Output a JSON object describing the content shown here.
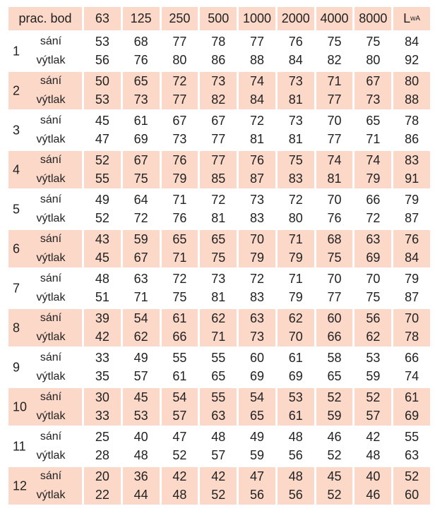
{
  "colors": {
    "shade": "#fcd8c8",
    "text": "#222222"
  },
  "header": {
    "first": "prac. bod",
    "freqs": [
      "63",
      "125",
      "250",
      "500",
      "1000",
      "2000",
      "4000",
      "8000"
    ],
    "lwa_main": "L",
    "lwa_sub": "wA"
  },
  "row_labels": {
    "intake": "sání",
    "discharge": "výtlak"
  },
  "groups": [
    {
      "id": "1",
      "intake": [
        53,
        68,
        77,
        78,
        77,
        76,
        75,
        75,
        84
      ],
      "discharge": [
        56,
        76,
        80,
        86,
        88,
        84,
        82,
        80,
        92
      ]
    },
    {
      "id": "2",
      "intake": [
        50,
        65,
        72,
        73,
        74,
        73,
        71,
        67,
        80
      ],
      "discharge": [
        53,
        73,
        77,
        82,
        84,
        81,
        77,
        73,
        88
      ]
    },
    {
      "id": "3",
      "intake": [
        45,
        61,
        67,
        67,
        72,
        73,
        70,
        65,
        78
      ],
      "discharge": [
        47,
        69,
        73,
        77,
        81,
        81,
        77,
        71,
        86
      ]
    },
    {
      "id": "4",
      "intake": [
        52,
        67,
        76,
        77,
        76,
        75,
        74,
        74,
        83
      ],
      "discharge": [
        55,
        75,
        79,
        85,
        87,
        83,
        81,
        79,
        91
      ]
    },
    {
      "id": "5",
      "intake": [
        49,
        64,
        71,
        72,
        73,
        72,
        70,
        66,
        79
      ],
      "discharge": [
        52,
        72,
        76,
        81,
        83,
        80,
        76,
        72,
        87
      ]
    },
    {
      "id": "6",
      "intake": [
        43,
        59,
        65,
        65,
        70,
        71,
        68,
        63,
        76
      ],
      "discharge": [
        45,
        67,
        71,
        75,
        79,
        79,
        75,
        69,
        84
      ]
    },
    {
      "id": "7",
      "intake": [
        48,
        63,
        72,
        73,
        72,
        71,
        70,
        70,
        79
      ],
      "discharge": [
        51,
        71,
        75,
        81,
        83,
        79,
        77,
        75,
        87
      ]
    },
    {
      "id": "8",
      "intake": [
        39,
        54,
        61,
        62,
        63,
        62,
        60,
        56,
        70
      ],
      "discharge": [
        42,
        62,
        66,
        71,
        73,
        70,
        66,
        62,
        78
      ]
    },
    {
      "id": "9",
      "intake": [
        33,
        49,
        55,
        55,
        60,
        61,
        58,
        53,
        66
      ],
      "discharge": [
        35,
        57,
        61,
        65,
        69,
        69,
        65,
        59,
        74
      ]
    },
    {
      "id": "10",
      "intake": [
        30,
        45,
        54,
        55,
        54,
        53,
        52,
        52,
        61
      ],
      "discharge": [
        33,
        53,
        57,
        63,
        65,
        61,
        59,
        57,
        69
      ]
    },
    {
      "id": "11",
      "intake": [
        25,
        40,
        47,
        48,
        49,
        48,
        46,
        42,
        55
      ],
      "discharge": [
        28,
        48,
        52,
        57,
        59,
        56,
        52,
        48,
        63
      ]
    },
    {
      "id": "12",
      "intake": [
        20,
        36,
        42,
        42,
        47,
        48,
        45,
        40,
        52
      ],
      "discharge": [
        22,
        44,
        48,
        52,
        56,
        56,
        52,
        46,
        60
      ]
    }
  ]
}
